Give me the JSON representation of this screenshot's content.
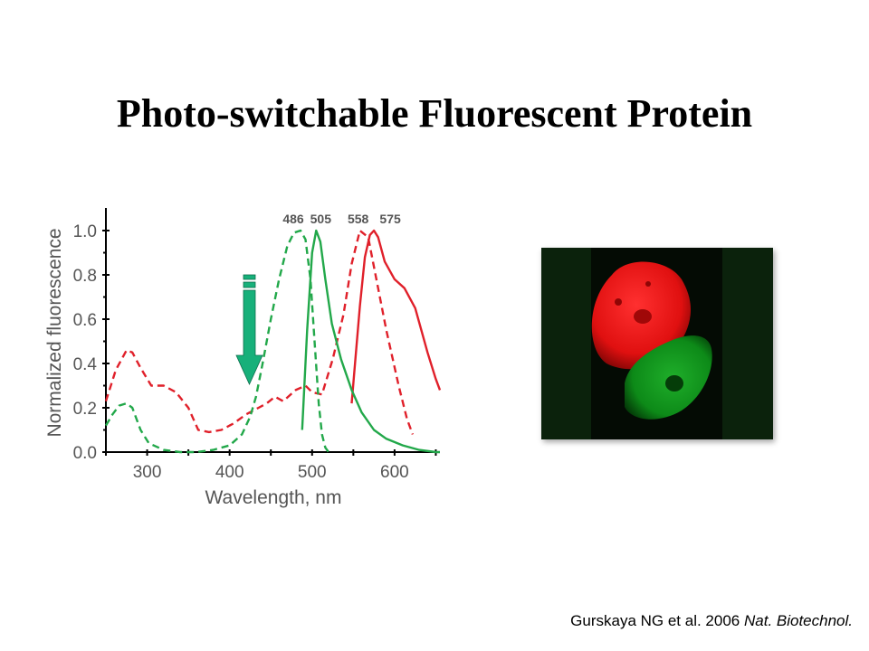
{
  "slide": {
    "title": "Photo-switchable Fluorescent Protein",
    "citation_main": "Gurskaya NG et al. 2006",
    "citation_journal": "Nat. Biotechnol."
  },
  "colors": {
    "red": "#e0202a",
    "green": "#22a84a",
    "arrow": "#17b07a"
  },
  "chart_data": {
    "type": "line",
    "xlabel": "Wavelength, nm",
    "ylabel": "Normalized fluorescence",
    "xlim": [
      250,
      655
    ],
    "ylim": [
      0,
      1.0
    ],
    "x_ticks": [
      300,
      400,
      500,
      600
    ],
    "y_ticks": [
      0.0,
      0.2,
      0.4,
      0.6,
      0.8,
      1.0
    ],
    "y_tick_labels": [
      "0.0",
      "0.2",
      "0.4",
      "0.6",
      "0.8",
      "1.0"
    ],
    "peak_labels": [
      {
        "text": "486",
        "x": 486
      },
      {
        "text": "505",
        "x": 505
      },
      {
        "text": "558",
        "x": 558
      },
      {
        "text": "575",
        "x": 575
      }
    ],
    "annotation": "downward arrow near 420 nm indicating photoswitching",
    "series": [
      {
        "color": "#e0202a",
        "dash": true,
        "x": [
          250,
          262,
          275,
          282,
          292,
          305,
          320,
          335,
          350,
          362,
          375,
          390,
          405,
          420,
          435,
          445,
          455,
          465,
          480,
          492,
          500,
          512,
          525,
          538,
          548,
          558,
          568,
          578,
          590,
          605,
          615,
          622
        ],
        "y": [
          0.23,
          0.37,
          0.46,
          0.45,
          0.38,
          0.3,
          0.3,
          0.27,
          0.2,
          0.1,
          0.09,
          0.1,
          0.13,
          0.17,
          0.2,
          0.22,
          0.25,
          0.23,
          0.28,
          0.3,
          0.27,
          0.26,
          0.42,
          0.62,
          0.85,
          1.0,
          0.97,
          0.78,
          0.55,
          0.3,
          0.15,
          0.08
        ]
      },
      {
        "color": "#e0202a",
        "dash": false,
        "x": [
          548,
          552,
          558,
          564,
          570,
          575,
          580,
          588,
          600,
          612,
          625,
          640,
          650,
          655
        ],
        "y": [
          0.22,
          0.4,
          0.66,
          0.88,
          0.98,
          1.0,
          0.97,
          0.86,
          0.78,
          0.74,
          0.65,
          0.45,
          0.33,
          0.28
        ]
      },
      {
        "color": "#22a84a",
        "dash": true,
        "x": [
          250,
          258,
          266,
          275,
          282,
          292,
          302,
          320,
          340,
          360,
          380,
          400,
          415,
          425,
          432,
          440,
          450,
          460,
          470,
          478,
          486,
          492,
          498,
          503,
          508,
          512,
          516,
          520
        ],
        "y": [
          0.12,
          0.17,
          0.21,
          0.22,
          0.2,
          0.1,
          0.04,
          0.01,
          0.0,
          0.0,
          0.01,
          0.03,
          0.08,
          0.16,
          0.25,
          0.4,
          0.6,
          0.78,
          0.93,
          0.99,
          1.0,
          0.96,
          0.78,
          0.5,
          0.22,
          0.08,
          0.02,
          0.0
        ]
      },
      {
        "color": "#22a84a",
        "dash": false,
        "x": [
          488,
          494,
          500,
          505,
          510,
          516,
          524,
          535,
          548,
          560,
          575,
          590,
          610,
          630,
          650,
          655
        ],
        "y": [
          0.1,
          0.55,
          0.9,
          1.0,
          0.95,
          0.78,
          0.58,
          0.42,
          0.28,
          0.18,
          0.1,
          0.06,
          0.03,
          0.01,
          0.0,
          0.0
        ]
      }
    ]
  }
}
